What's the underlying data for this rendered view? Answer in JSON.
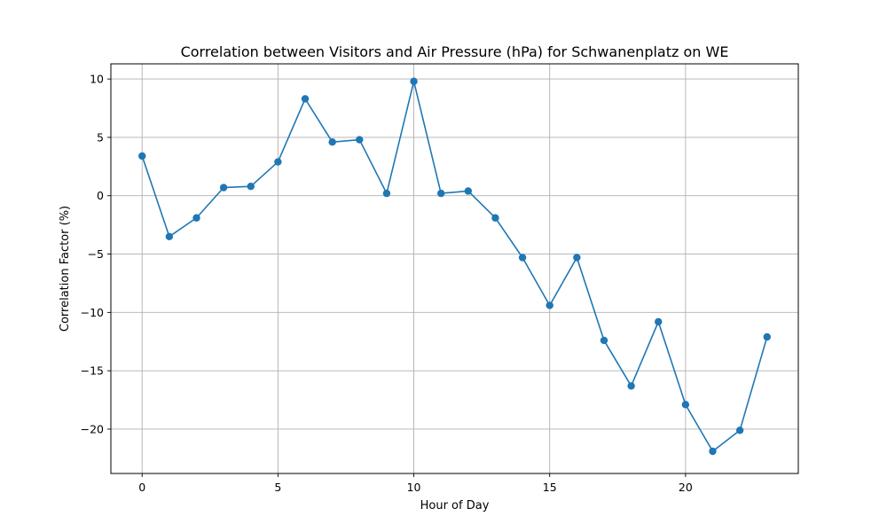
{
  "chart_data": {
    "type": "line",
    "title": "Correlation between Visitors and Air Pressure (hPa) for Schwanenplatz on WE",
    "xlabel": "Hour of Day",
    "ylabel": "Correlation Factor (%)",
    "xlim": [
      -1.15,
      24.15
    ],
    "ylim": [
      -23.8,
      11.3
    ],
    "xticks": [
      0,
      5,
      10,
      15,
      20
    ],
    "xtick_labels": [
      "0",
      "5",
      "10",
      "15",
      "20"
    ],
    "yticks": [
      -20,
      -15,
      -10,
      -5,
      0,
      5,
      10
    ],
    "ytick_labels": [
      "−20",
      "−15",
      "−10",
      "−5",
      "0",
      "5",
      "10"
    ],
    "grid": true,
    "color": "#1f77b4",
    "series": [
      {
        "x": [
          0,
          1,
          2,
          3,
          4,
          5,
          6,
          7,
          8,
          9,
          10,
          11,
          12,
          13,
          14,
          15,
          16,
          17,
          18,
          19,
          20,
          21,
          22,
          23
        ],
        "values": [
          3.4,
          -3.5,
          -1.9,
          0.7,
          0.8,
          2.9,
          8.3,
          4.6,
          4.8,
          0.2,
          9.8,
          0.2,
          0.4,
          -1.9,
          -5.3,
          -9.4,
          -5.3,
          -12.4,
          -16.3,
          -10.8,
          -17.9,
          -21.9,
          -20.1,
          -12.1
        ]
      }
    ]
  }
}
